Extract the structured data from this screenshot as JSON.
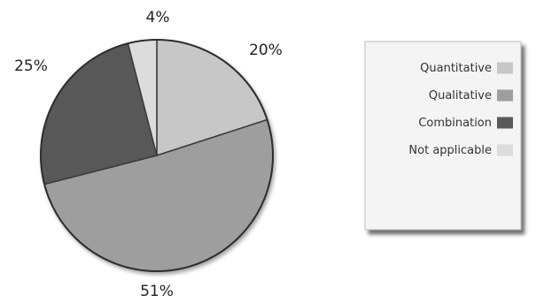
{
  "chart_data": {
    "type": "pie",
    "slices": [
      {
        "label": "Quantitative",
        "value": 20,
        "display": "20%",
        "color": "#c7c7c7"
      },
      {
        "label": "Qualitative",
        "value": 51,
        "display": "51%",
        "color": "#9e9e9e"
      },
      {
        "label": "Combination",
        "value": 25,
        "display": "25%",
        "color": "#595959"
      },
      {
        "label": "Not applicable",
        "value": 4,
        "display": "4%",
        "color": "#dcdcdc"
      }
    ],
    "legend_position": "right"
  }
}
